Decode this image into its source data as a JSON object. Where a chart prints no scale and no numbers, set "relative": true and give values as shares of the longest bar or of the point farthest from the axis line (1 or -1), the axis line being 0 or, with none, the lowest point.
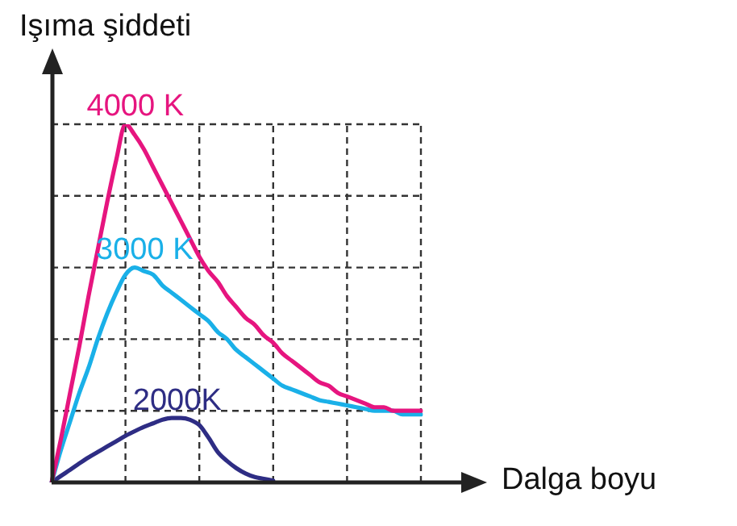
{
  "chart_data": {
    "type": "line",
    "ylabel": "Işıma şiddeti",
    "xlabel": "Dalga boyu",
    "relative": true,
    "grid": true,
    "legend": false,
    "tick_labels": false,
    "marker": "none",
    "line_style": "solid",
    "categories": [
      null,
      null,
      null,
      null,
      null,
      null,
      null,
      null,
      null,
      null,
      null,
      null,
      null,
      null,
      null,
      null,
      null,
      null,
      null,
      null,
      null,
      null,
      null,
      null,
      null,
      null,
      null,
      null,
      null,
      null,
      null,
      null,
      null,
      null,
      null,
      null,
      null,
      null,
      null,
      null,
      null
    ],
    "series": [
      {
        "name": "4000 K",
        "color": "#e6157f",
        "values": [
          0,
          0.12,
          0.25,
          0.38,
          0.52,
          0.65,
          0.78,
          0.9,
          1.0,
          0.97,
          0.93,
          0.88,
          0.83,
          0.78,
          0.73,
          0.68,
          0.63,
          0.59,
          0.56,
          0.52,
          0.49,
          0.46,
          0.44,
          0.41,
          0.39,
          0.36,
          0.34,
          0.32,
          0.3,
          0.28,
          0.27,
          0.25,
          0.24,
          0.23,
          0.22,
          0.21,
          0.21,
          0.2,
          0.2,
          0.2,
          0.2
        ]
      },
      {
        "name": "3000 K",
        "color": "#1ab0e8",
        "values": [
          0,
          0.09,
          0.17,
          0.25,
          0.32,
          0.4,
          0.47,
          0.53,
          0.58,
          0.6,
          0.59,
          0.58,
          0.55,
          0.53,
          0.51,
          0.49,
          0.47,
          0.45,
          0.42,
          0.4,
          0.37,
          0.35,
          0.33,
          0.31,
          0.29,
          0.27,
          0.26,
          0.25,
          0.24,
          0.23,
          0.225,
          0.22,
          0.215,
          0.21,
          0.205,
          0.2,
          0.2,
          0.2,
          0.19,
          0.19,
          0.19
        ]
      },
      {
        "name": "2000K",
        "color": "#2e2d84",
        "values": [
          0,
          0.018,
          0.035,
          0.053,
          0.07,
          0.085,
          0.1,
          0.115,
          0.13,
          0.143,
          0.155,
          0.165,
          0.175,
          0.18,
          0.18,
          0.175,
          0.16,
          0.125,
          0.085,
          0.06,
          0.04,
          0.025,
          0.015,
          0.01,
          0.005,
          null,
          null,
          null,
          null,
          null,
          null,
          null,
          null,
          null,
          null,
          null,
          null,
          null,
          null,
          null,
          null
        ]
      }
    ]
  }
}
